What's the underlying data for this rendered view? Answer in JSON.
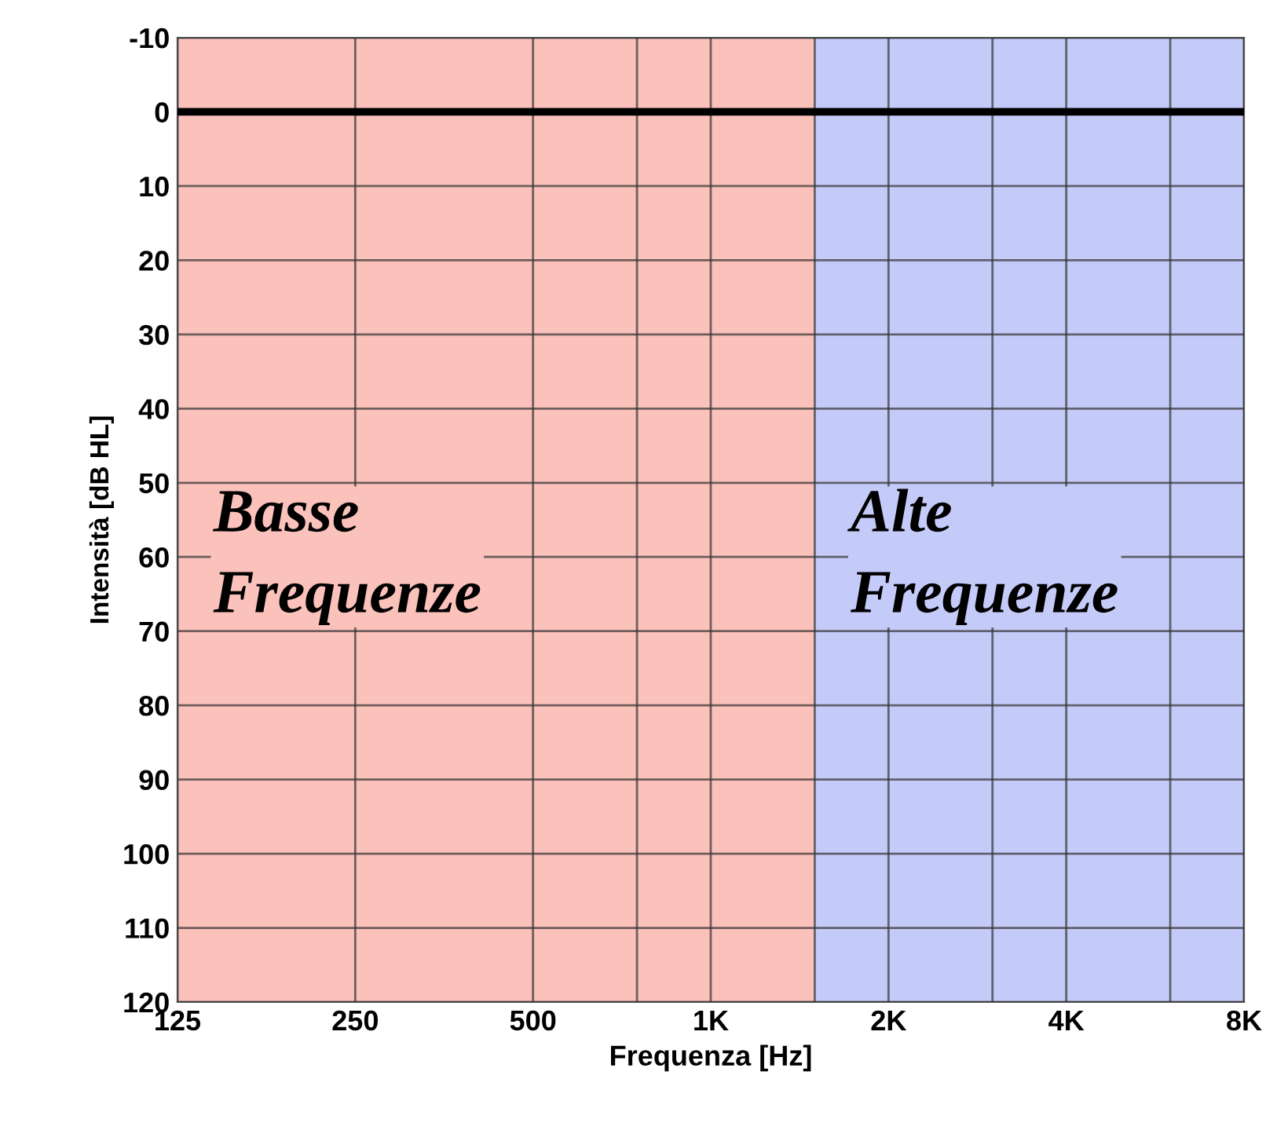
{
  "chart_data": {
    "type": "line",
    "xlabel": "Frequenza [Hz]",
    "ylabel": "Intensità [dB HL]",
    "log": "x",
    "xlim": [
      125,
      8000
    ],
    "xticks": [
      {
        "value": 125,
        "label": "125"
      },
      {
        "value": 250,
        "label": "250"
      },
      {
        "value": 500,
        "label": "500"
      },
      {
        "value": 750,
        "label": null
      },
      {
        "value": 1000,
        "label": "1K"
      },
      {
        "value": 1500,
        "label": null
      },
      {
        "value": 2000,
        "label": "2K"
      },
      {
        "value": 3000,
        "label": null
      },
      {
        "value": 4000,
        "label": "4K"
      },
      {
        "value": 6000,
        "label": null
      },
      {
        "value": 8000,
        "label": "8K"
      }
    ],
    "ylim": [
      120,
      -10
    ],
    "yticks": [
      -10,
      0,
      10,
      20,
      30,
      40,
      50,
      60,
      70,
      80,
      90,
      100,
      110,
      120
    ],
    "grid": true,
    "ref_lines": [
      {
        "axis": "y",
        "value": 0,
        "color": "#000000"
      }
    ],
    "bands": [
      {
        "axis": "x",
        "from": 125,
        "to": 1500,
        "label": "Basse\nFrequenze",
        "color": "#fbc1bb"
      },
      {
        "axis": "x",
        "from": 1500,
        "to": 8000,
        "label": "Alte\nFrequenze",
        "color": "#c5cbf8"
      }
    ]
  }
}
